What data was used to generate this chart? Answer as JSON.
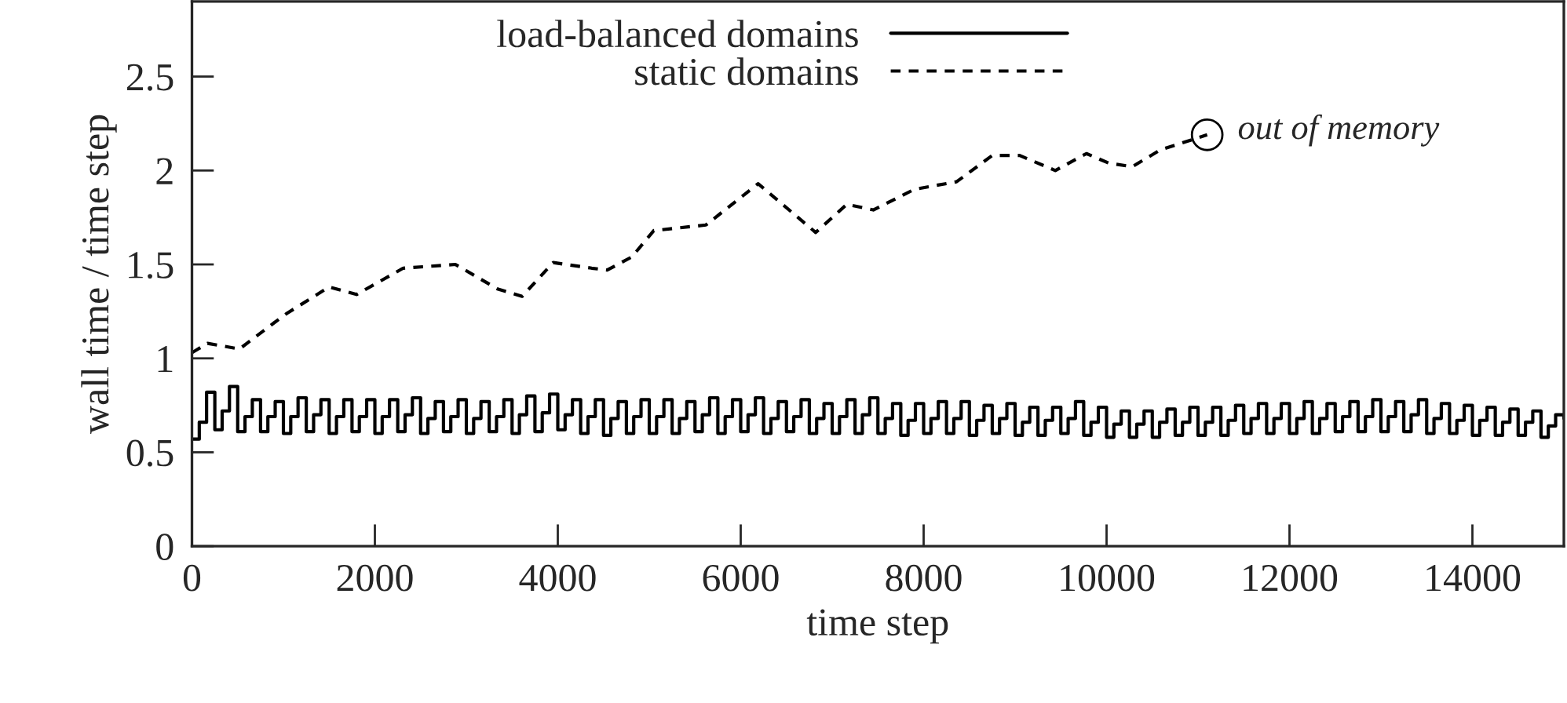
{
  "chart_data": {
    "type": "line",
    "xlabel": "time step",
    "ylabel": "wall time / time step",
    "xlim": [
      0,
      15000
    ],
    "ylim": [
      0,
      2.9
    ],
    "xticks": [
      0,
      2000,
      4000,
      6000,
      8000,
      10000,
      12000,
      14000
    ],
    "yticks": [
      0,
      0.5,
      1,
      1.5,
      2,
      2.5
    ],
    "grid": false,
    "legend": "top",
    "marker": "none",
    "annotations": [
      {
        "text": "out of memory",
        "x": 11100,
        "y": 2.19
      }
    ],
    "series": [
      {
        "name": "load-balanced domains",
        "type": "step",
        "color": "#000000",
        "line_style": "solid",
        "x": [
          0,
          80,
          160,
          250,
          330,
          410,
          500,
          580,
          660,
          750,
          830,
          910,
          1000,
          1080,
          1160,
          1250,
          1330,
          1410,
          1500,
          1580,
          1660,
          1750,
          1830,
          1910,
          2000,
          2080,
          2160,
          2250,
          2330,
          2410,
          2500,
          2580,
          2660,
          2750,
          2830,
          2910,
          3000,
          3080,
          3160,
          3250,
          3330,
          3410,
          3500,
          3580,
          3660,
          3750,
          3830,
          3910,
          4000,
          4080,
          4160,
          4250,
          4330,
          4410,
          4500,
          4580,
          4660,
          4750,
          4830,
          4910,
          5000,
          5080,
          5160,
          5250,
          5330,
          5410,
          5500,
          5580,
          5660,
          5750,
          5830,
          5910,
          6000,
          6080,
          6160,
          6250,
          6330,
          6410,
          6500,
          6580,
          6660,
          6750,
          6830,
          6910,
          7000,
          7080,
          7160,
          7250,
          7330,
          7410,
          7500,
          7580,
          7660,
          7750,
          7830,
          7910,
          8000,
          8080,
          8160,
          8250,
          8330,
          8410,
          8500,
          8580,
          8660,
          8750,
          8830,
          8910,
          9000,
          9080,
          9160,
          9250,
          9330,
          9410,
          9500,
          9580,
          9660,
          9750,
          9830,
          9910,
          10000,
          10080,
          10160,
          10250,
          10330,
          10410,
          10500,
          10580,
          10660,
          10750,
          10830,
          10910,
          11000,
          11080,
          11160,
          11250,
          11330,
          11410,
          11500,
          11580,
          11660,
          11750,
          11830,
          11910,
          12000,
          12080,
          12160,
          12250,
          12330,
          12410,
          12500,
          12580,
          12660,
          12750,
          12830,
          12910,
          13000,
          13080,
          13160,
          13250,
          13330,
          13410,
          13500,
          13580,
          13660,
          13750,
          13830,
          13910,
          14000,
          14080,
          14160,
          14250,
          14330,
          14410,
          14500,
          14580,
          14660,
          14750,
          14830,
          14910,
          15000
        ],
        "values": [
          0.57,
          0.66,
          0.82,
          0.62,
          0.72,
          0.85,
          0.61,
          0.69,
          0.78,
          0.61,
          0.69,
          0.77,
          0.6,
          0.69,
          0.79,
          0.61,
          0.7,
          0.78,
          0.6,
          0.69,
          0.78,
          0.61,
          0.69,
          0.78,
          0.6,
          0.69,
          0.78,
          0.61,
          0.7,
          0.79,
          0.6,
          0.68,
          0.77,
          0.61,
          0.69,
          0.78,
          0.6,
          0.68,
          0.77,
          0.61,
          0.69,
          0.78,
          0.6,
          0.7,
          0.8,
          0.61,
          0.71,
          0.81,
          0.62,
          0.7,
          0.78,
          0.6,
          0.69,
          0.78,
          0.59,
          0.68,
          0.77,
          0.6,
          0.69,
          0.78,
          0.6,
          0.69,
          0.78,
          0.6,
          0.68,
          0.77,
          0.61,
          0.7,
          0.79,
          0.6,
          0.69,
          0.78,
          0.61,
          0.7,
          0.79,
          0.6,
          0.68,
          0.77,
          0.61,
          0.69,
          0.78,
          0.6,
          0.68,
          0.76,
          0.6,
          0.69,
          0.78,
          0.6,
          0.7,
          0.79,
          0.6,
          0.68,
          0.76,
          0.59,
          0.67,
          0.76,
          0.6,
          0.68,
          0.77,
          0.6,
          0.68,
          0.77,
          0.59,
          0.67,
          0.75,
          0.6,
          0.68,
          0.76,
          0.59,
          0.66,
          0.74,
          0.59,
          0.67,
          0.74,
          0.6,
          0.68,
          0.77,
          0.59,
          0.66,
          0.74,
          0.58,
          0.65,
          0.72,
          0.58,
          0.65,
          0.72,
          0.58,
          0.66,
          0.73,
          0.59,
          0.66,
          0.74,
          0.59,
          0.66,
          0.74,
          0.59,
          0.67,
          0.75,
          0.6,
          0.68,
          0.76,
          0.6,
          0.68,
          0.76,
          0.6,
          0.68,
          0.77,
          0.6,
          0.68,
          0.76,
          0.61,
          0.69,
          0.77,
          0.61,
          0.69,
          0.78,
          0.61,
          0.69,
          0.77,
          0.61,
          0.7,
          0.78,
          0.6,
          0.68,
          0.76,
          0.6,
          0.67,
          0.75,
          0.59,
          0.67,
          0.74,
          0.59,
          0.66,
          0.73,
          0.59,
          0.66,
          0.72,
          0.58,
          0.64,
          0.7,
          0.68
        ]
      },
      {
        "name": "static domains",
        "color": "#000000",
        "line_style": "dashed",
        "x": [
          0,
          170,
          520,
          900,
          1040,
          1500,
          1800,
          2310,
          2880,
          3340,
          3610,
          3950,
          4370,
          4540,
          4810,
          5050,
          5620,
          6190,
          6820,
          7160,
          7450,
          7900,
          8360,
          8750,
          9050,
          9440,
          9780,
          10020,
          10280,
          10590,
          11100
        ],
        "values": [
          1.03,
          1.08,
          1.05,
          1.19,
          1.24,
          1.38,
          1.34,
          1.48,
          1.5,
          1.37,
          1.33,
          1.51,
          1.48,
          1.47,
          1.54,
          1.68,
          1.71,
          1.93,
          1.67,
          1.82,
          1.79,
          1.9,
          1.94,
          2.08,
          2.08,
          2.0,
          2.09,
          2.04,
          2.02,
          2.11,
          2.19
        ]
      }
    ]
  }
}
